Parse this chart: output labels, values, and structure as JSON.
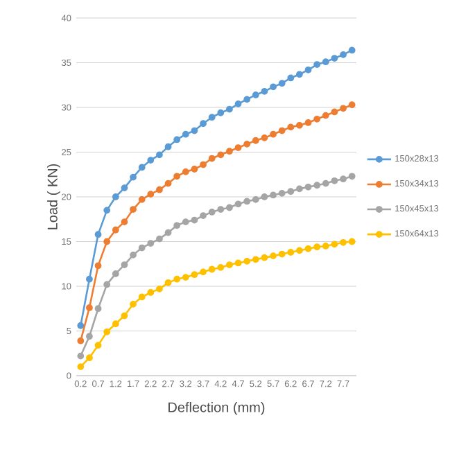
{
  "chart_data": {
    "type": "line",
    "xlabel": "Deflection (mm)",
    "ylabel": "Load ( KN)",
    "categories": [
      "0.2",
      null,
      "0.7",
      null,
      "1.2",
      null,
      "1.7",
      null,
      "2.2",
      null,
      "2.7",
      null,
      "3.2",
      null,
      "3.7",
      null,
      "4.2",
      null,
      "4.7",
      null,
      "5.2",
      null,
      "5.7",
      null,
      "6.2",
      null,
      "6.7",
      null,
      "7.2",
      null,
      "7.7",
      null
    ],
    "ylim": [
      0,
      40
    ],
    "yticks": [
      0,
      5,
      10,
      15,
      20,
      25,
      30,
      35,
      40
    ],
    "grid": "y",
    "legend": "right",
    "marker": "circle",
    "line_style": "solid",
    "series": [
      {
        "name": "150x28x13",
        "color": "#5b9bd5",
        "values": [
          5.6,
          10.8,
          15.8,
          18.5,
          20.0,
          21.0,
          22.2,
          23.3,
          24.1,
          24.7,
          25.6,
          26.4,
          27.0,
          27.4,
          28.2,
          28.9,
          29.4,
          29.8,
          30.4,
          30.9,
          31.4,
          31.8,
          32.3,
          32.7,
          33.3,
          33.7,
          34.2,
          34.8,
          35.1,
          35.5,
          35.9,
          36.4
        ]
      },
      {
        "name": "150x34x13",
        "color": "#ed7d31",
        "values": [
          3.9,
          7.6,
          12.3,
          15.0,
          16.3,
          17.2,
          18.6,
          19.7,
          20.3,
          20.8,
          21.5,
          22.3,
          22.8,
          23.1,
          23.6,
          24.3,
          24.7,
          25.1,
          25.5,
          25.9,
          26.3,
          26.6,
          27.0,
          27.4,
          27.8,
          28.0,
          28.3,
          28.7,
          29.1,
          29.5,
          29.9,
          30.3
        ]
      },
      {
        "name": "150x45x13",
        "color": "#a5a5a5",
        "values": [
          2.2,
          4.4,
          7.5,
          10.2,
          11.4,
          12.4,
          13.5,
          14.3,
          14.8,
          15.3,
          16.0,
          16.8,
          17.2,
          17.4,
          17.9,
          18.3,
          18.6,
          18.8,
          19.2,
          19.5,
          19.7,
          20.0,
          20.2,
          20.4,
          20.6,
          20.9,
          21.1,
          21.3,
          21.5,
          21.8,
          22.0,
          22.3
        ]
      },
      {
        "name": "150x64x13",
        "color": "#ffc000",
        "values": [
          1.0,
          2.0,
          3.4,
          4.9,
          5.8,
          6.7,
          8.0,
          8.8,
          9.3,
          9.7,
          10.4,
          10.8,
          11.0,
          11.3,
          11.6,
          11.9,
          12.1,
          12.4,
          12.6,
          12.8,
          13.0,
          13.2,
          13.4,
          13.6,
          13.8,
          14.0,
          14.2,
          14.4,
          14.5,
          14.7,
          14.9,
          15.0
        ]
      }
    ]
  }
}
